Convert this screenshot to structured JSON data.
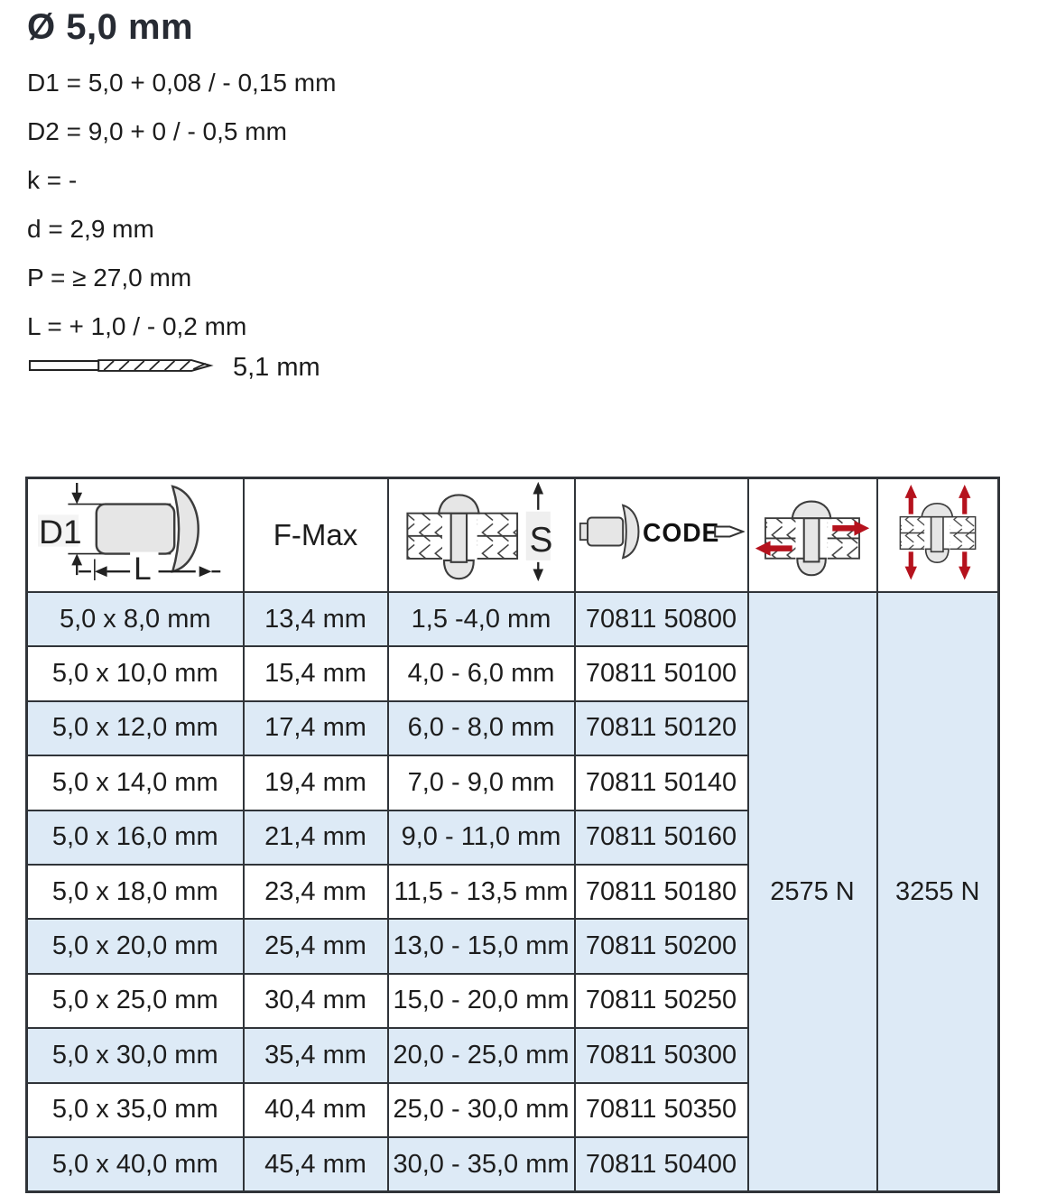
{
  "specs": {
    "title": "Ø 5,0 mm",
    "lines": [
      "D1 = 5,0 + 0,08 / - 0,15 mm",
      "D2 = 9,0 + 0 / - 0,5 mm",
      "k = -",
      "d = 2,9 mm",
      "P = ≥ 27,0 mm",
      "L = + 1,0 / - 0,2 mm"
    ],
    "drill_icon": "drill-bit-icon",
    "drill_diameter": "5,1 mm"
  },
  "table": {
    "header": {
      "dimension_icon": "rivet-dimension-diagram-icon",
      "d1_label": "D1",
      "l_label": "L",
      "f_max_label": "F-Max",
      "grip_icon": "grip-range-section-icon",
      "s_label": "S",
      "code_icon": "rivet-code-icon",
      "code_label": "CODE",
      "shear_icon": "shear-strength-icon",
      "tensile_icon": "tensile-strength-icon"
    },
    "rows": [
      {
        "dimension": "5,0 x 8,0 mm",
        "f_max": "13,4 mm",
        "grip_range": "1,5 -4,0 mm",
        "code": "70811 50800"
      },
      {
        "dimension": "5,0 x 10,0 mm",
        "f_max": "15,4 mm",
        "grip_range": "4,0 - 6,0 mm",
        "code": "70811 50100"
      },
      {
        "dimension": "5,0 x 12,0 mm",
        "f_max": "17,4 mm",
        "grip_range": "6,0 - 8,0 mm",
        "code": "70811 50120"
      },
      {
        "dimension": "5,0 x 14,0 mm",
        "f_max": "19,4 mm",
        "grip_range": "7,0 - 9,0 mm",
        "code": "70811 50140"
      },
      {
        "dimension": "5,0 x 16,0 mm",
        "f_max": "21,4 mm",
        "grip_range": "9,0 - 11,0 mm",
        "code": "70811 50160"
      },
      {
        "dimension": "5,0 x 18,0 mm",
        "f_max": "23,4 mm",
        "grip_range": "11,5 - 13,5 mm",
        "code": "70811 50180"
      },
      {
        "dimension": "5,0 x 20,0 mm",
        "f_max": "25,4 mm",
        "grip_range": "13,0 - 15,0 mm",
        "code": "70811 50200"
      },
      {
        "dimension": "5,0 x 25,0 mm",
        "f_max": "30,4 mm",
        "grip_range": "15,0 - 20,0 mm",
        "code": "70811 50250"
      },
      {
        "dimension": "5,0 x 30,0 mm",
        "f_max": "35,4 mm",
        "grip_range": "20,0 - 25,0 mm",
        "code": "70811 50300"
      },
      {
        "dimension": "5,0 x 35,0 mm",
        "f_max": "40,4 mm",
        "grip_range": "25,0 - 30,0 mm",
        "code": "70811 50350"
      },
      {
        "dimension": "5,0 x 40,0 mm",
        "f_max": "45,4 mm",
        "grip_range": "30,0 - 35,0 mm",
        "code": "70811 50400"
      }
    ],
    "shear_strength": "2575 N",
    "tensile_strength": "3255 N"
  },
  "colors": {
    "row_highlight": "#ddeaf6",
    "grid_border": "#303439",
    "arrow_red": "#b5121d",
    "metal_fill": "#e6e6e6",
    "title_text": "#272b33"
  }
}
